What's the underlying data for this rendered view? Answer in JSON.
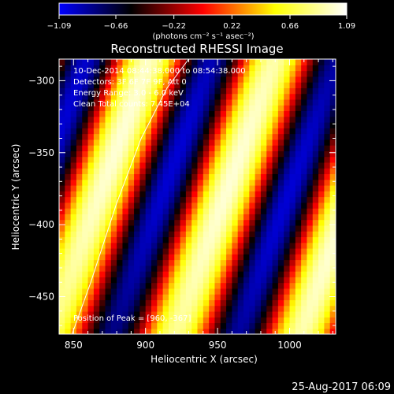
{
  "chart_data": {
    "type": "heatmap",
    "title": "Reconstructed RHESSI Image",
    "xlabel": "Heliocentric X (arcsec)",
    "ylabel": "Heliocentric Y (arcsec)",
    "xlim": [
      840,
      1032
    ],
    "ylim": [
      -476,
      -285
    ],
    "x_ticks": [
      850,
      900,
      950,
      1000
    ],
    "y_ticks": [
      -300,
      -350,
      -400,
      -450
    ],
    "x_tick_labels": [
      "850",
      "900",
      "950",
      "1000"
    ],
    "y_tick_labels": [
      "−300",
      "−350",
      "−400",
      "−450"
    ],
    "colorbar": {
      "label": "(photons cm⁻² s⁻¹ asec⁻²)",
      "range": [
        -1.09,
        1.09
      ],
      "ticks": [
        -1.09,
        -0.66,
        -0.22,
        0.22,
        0.66,
        1.09
      ],
      "tick_labels": [
        "−1.09",
        "−0.66",
        "−0.22",
        "0.22",
        "0.66",
        "1.09"
      ],
      "colormap": [
        "#0000ff",
        "#000000",
        "#ff0000",
        "#ffff00",
        "#ffffff"
      ]
    },
    "annotations": {
      "line1": "10-Dec-2014 08:44:38.000 to 08:54:38.000",
      "line2": "Detectors: 3F 6F 7F 9F, Att 0",
      "line3": "Energy Range: 3.0 - 6.0 keV",
      "line4": "Clean     Total counts: 7.45E+04",
      "peak": "Position of Peak = [960, -367]"
    },
    "peak_position": [
      960,
      -367
    ],
    "limb_curve": [
      [
        849,
        -476
      ],
      [
        862,
        -440
      ],
      [
        880,
        -385
      ],
      [
        897,
        -340
      ],
      [
        915,
        -305
      ],
      [
        930,
        -285
      ]
    ]
  },
  "footer": {
    "date": "25-Aug-2017 06:09"
  }
}
